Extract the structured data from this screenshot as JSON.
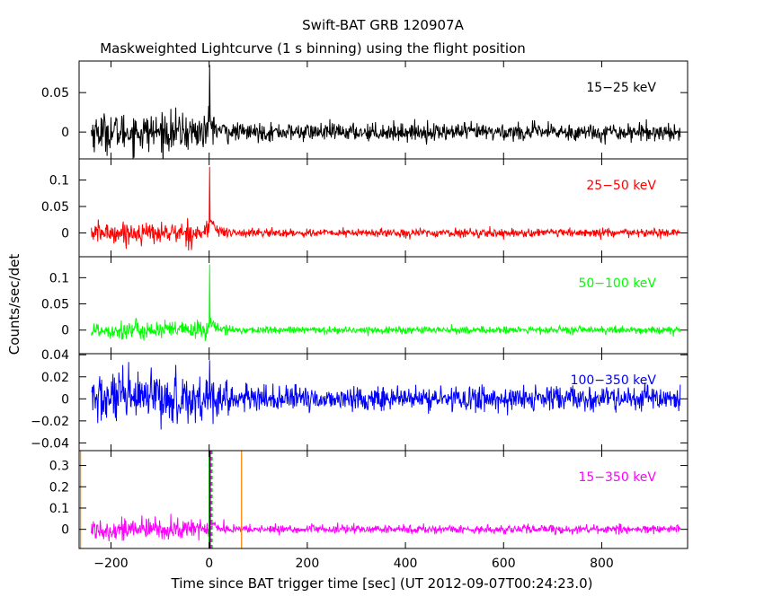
{
  "chart_data": {
    "type": "line",
    "title": "Swift-BAT GRB 120907A",
    "subtitle": "Maskweighted Lightcurve (1 s binning) using the flight position",
    "xlabel": "Time since BAT trigger time [sec] (UT 2012-09-07T00:24:23.0)",
    "ylabel": "Counts/sec/det",
    "xlim": [
      -265,
      975
    ],
    "x_ticks": [
      -200,
      0,
      200,
      400,
      600,
      800
    ],
    "x_tick_labels": [
      "−200",
      "0",
      "200",
      "400",
      "600",
      "800"
    ],
    "data_x_range": [
      -240,
      960
    ],
    "panels": [
      {
        "series_name": "15−25 keV",
        "color": "#000000",
        "ylim": [
          -0.034,
          0.09
        ],
        "y_ticks": [
          0,
          0.05
        ],
        "y_tick_labels": [
          "0",
          "0.05"
        ],
        "pre_burst_noise": 0.012,
        "post_burst_noise": 0.0055,
        "peak": {
          "x": 1,
          "y": 0.085
        },
        "tail": 0.015
      },
      {
        "series_name": "25−50 keV",
        "color": "#ff0000",
        "ylim": [
          -0.045,
          0.14
        ],
        "y_ticks": [
          0,
          0.05,
          0.1
        ],
        "y_tick_labels": [
          "0",
          "0.05",
          "0.1"
        ],
        "pre_burst_noise": 0.01,
        "post_burst_noise": 0.004,
        "peak": {
          "x": 1,
          "y": 0.125
        },
        "tail": 0.03
      },
      {
        "series_name": "50−100 keV",
        "color": "#00ff00",
        "ylim": [
          -0.045,
          0.14
        ],
        "y_ticks": [
          0,
          0.05,
          0.1
        ],
        "y_tick_labels": [
          "0",
          "0.05",
          "0.1"
        ],
        "pre_burst_noise": 0.009,
        "post_burst_noise": 0.0035,
        "peak": {
          "x": 1,
          "y": 0.125
        },
        "tail": 0.02
      },
      {
        "series_name": "100−350 keV",
        "color": "#0000ff",
        "ylim": [
          -0.047,
          0.041
        ],
        "y_ticks": [
          -0.04,
          -0.02,
          0,
          0.02,
          0.04
        ],
        "y_tick_labels": [
          "−0.04",
          "−0.02",
          "0",
          "0.02",
          "0.04"
        ],
        "pre_burst_noise": 0.012,
        "post_burst_noise": 0.0055,
        "peak": {
          "x": 1,
          "y": 0.035
        },
        "tail": 0.006
      },
      {
        "series_name": "15−350 keV",
        "color": "#ff00ff",
        "ylim": [
          -0.09,
          0.37
        ],
        "y_ticks": [
          0,
          0.1,
          0.2,
          0.3
        ],
        "y_tick_labels": [
          "0",
          "0.1",
          "0.2",
          "0.3"
        ],
        "pre_burst_noise": 0.025,
        "post_burst_noise": 0.01,
        "peak": {
          "x": 1,
          "y": 0.37
        },
        "tail": 0.05,
        "markers": [
          {
            "x": -262,
            "color": "#ff8000",
            "style": "solid"
          },
          {
            "x": 66,
            "color": "#ff8000",
            "style": "solid"
          },
          {
            "x": 0,
            "color": "#00aa00",
            "style": "solid"
          },
          {
            "x": 2,
            "color": "#000000",
            "style": "solid"
          },
          {
            "x": 4,
            "color": "#ff00ff",
            "style": "dashed"
          },
          {
            "x": 6,
            "color": "#00cc00",
            "style": "dashed"
          }
        ]
      }
    ]
  }
}
